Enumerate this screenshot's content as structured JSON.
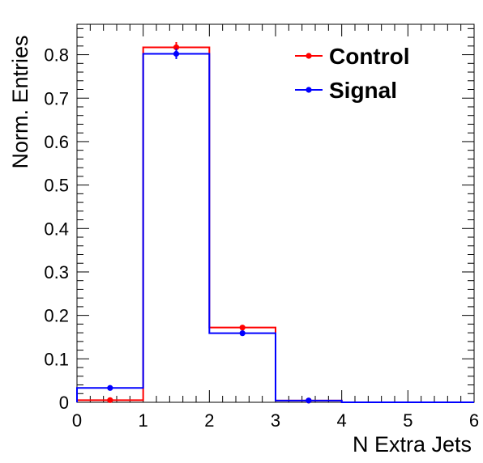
{
  "chart_data": {
    "type": "histogram",
    "title": "",
    "xlabel": "N Extra Jets",
    "ylabel": "Norm. Entries",
    "xlim": [
      0,
      6
    ],
    "ylim": [
      0,
      0.87
    ],
    "x_ticks": [
      "0",
      "1",
      "2",
      "3",
      "4",
      "5",
      "6"
    ],
    "y_ticks": [
      "0",
      "0.1",
      "0.2",
      "0.3",
      "0.4",
      "0.5",
      "0.6",
      "0.7",
      "0.8"
    ],
    "bin_edges": [
      0,
      1,
      2,
      3,
      4,
      5,
      6
    ],
    "legend_position": "top-right",
    "grid": false,
    "series": [
      {
        "name": "Control",
        "color": "#ff0000",
        "values": [
          0.005,
          0.817,
          0.172,
          0.004,
          0.0,
          0.0
        ],
        "errors": [
          0.002,
          0.012,
          0.005,
          0.001,
          0.0,
          0.0
        ],
        "marker_bins": [
          0,
          1,
          2,
          3
        ]
      },
      {
        "name": "Signal",
        "color": "#0000ff",
        "values": [
          0.033,
          0.802,
          0.159,
          0.004,
          0.0,
          0.0
        ],
        "errors": [
          0.003,
          0.012,
          0.004,
          0.001,
          0.0,
          0.0
        ],
        "marker_bins": [
          0,
          1,
          2,
          3
        ]
      }
    ]
  }
}
